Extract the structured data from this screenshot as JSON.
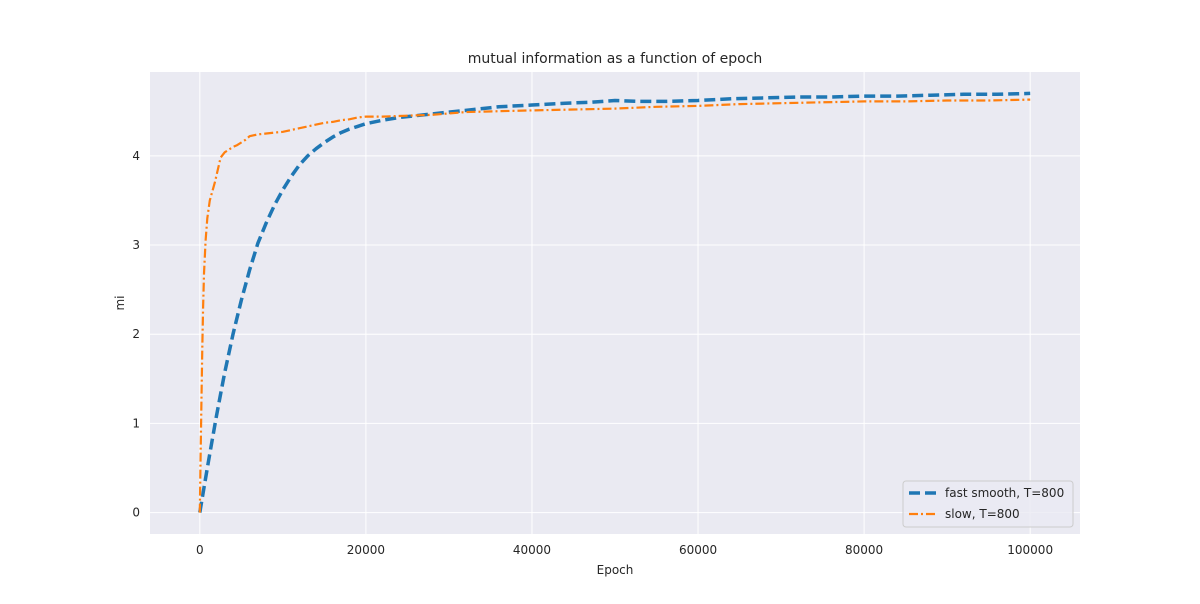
{
  "chart_data": {
    "type": "line",
    "title": "mutual information as a function of epoch",
    "xlabel": "Epoch",
    "ylabel": "mi",
    "xlim": [
      -6000,
      106000
    ],
    "ylim": [
      -0.24,
      4.94
    ],
    "xticks": [
      0,
      20000,
      40000,
      60000,
      80000,
      100000
    ],
    "yticks": [
      0,
      1,
      2,
      3,
      4
    ],
    "grid": true,
    "background": "#eaeaf2",
    "legend_position": "lower right",
    "series": [
      {
        "name": "fast smooth, T=800",
        "color": "#1f77b4",
        "dash": "dashed",
        "x": [
          0,
          500,
          1000,
          1500,
          2000,
          2500,
          3000,
          4000,
          5000,
          6000,
          7000,
          8000,
          9000,
          10000,
          11000,
          12000,
          13000,
          14000,
          15000,
          16000,
          17000,
          18000,
          19000,
          20000,
          22000,
          24000,
          26000,
          28000,
          30000,
          33000,
          36000,
          40000,
          44000,
          47000,
          50000,
          53000,
          56000,
          60000,
          64000,
          68000,
          72000,
          76000,
          80000,
          84000,
          88000,
          92000,
          96000,
          100000
        ],
        "y": [
          0.0,
          0.28,
          0.55,
          0.82,
          1.08,
          1.33,
          1.57,
          2.0,
          2.38,
          2.72,
          3.02,
          3.25,
          3.45,
          3.62,
          3.77,
          3.9,
          4.0,
          4.08,
          4.15,
          4.21,
          4.26,
          4.3,
          4.33,
          4.36,
          4.4,
          4.43,
          4.45,
          4.47,
          4.49,
          4.52,
          4.55,
          4.57,
          4.59,
          4.6,
          4.62,
          4.61,
          4.61,
          4.62,
          4.64,
          4.65,
          4.66,
          4.66,
          4.67,
          4.67,
          4.68,
          4.69,
          4.69,
          4.7
        ]
      },
      {
        "name": "slow, T=800",
        "color": "#ff7f0e",
        "dash": "dashdot",
        "x": [
          0,
          100,
          200,
          300,
          400,
          500,
          700,
          900,
          1200,
          1500,
          1800,
          2100,
          2500,
          3000,
          3500,
          4000,
          4500,
          5000,
          5500,
          6000,
          7000,
          8000,
          9000,
          10000,
          11000,
          12000,
          13000,
          14000,
          15000,
          16000,
          17000,
          18000,
          19000,
          20000,
          22000,
          25000,
          28000,
          32000,
          36000,
          40000,
          45000,
          50000,
          55000,
          60000,
          65000,
          70000,
          75000,
          80000,
          85000,
          90000,
          95000,
          100000
        ],
        "y": [
          0.0,
          0.7,
          1.3,
          1.85,
          2.3,
          2.68,
          3.05,
          3.3,
          3.5,
          3.6,
          3.7,
          3.82,
          3.98,
          4.04,
          4.07,
          4.1,
          4.12,
          4.15,
          4.18,
          4.22,
          4.24,
          4.25,
          4.26,
          4.27,
          4.29,
          4.31,
          4.33,
          4.35,
          4.37,
          4.38,
          4.4,
          4.41,
          4.43,
          4.44,
          4.44,
          4.45,
          4.46,
          4.49,
          4.5,
          4.51,
          4.52,
          4.53,
          4.55,
          4.56,
          4.58,
          4.59,
          4.6,
          4.61,
          4.61,
          4.62,
          4.62,
          4.63
        ]
      }
    ]
  }
}
